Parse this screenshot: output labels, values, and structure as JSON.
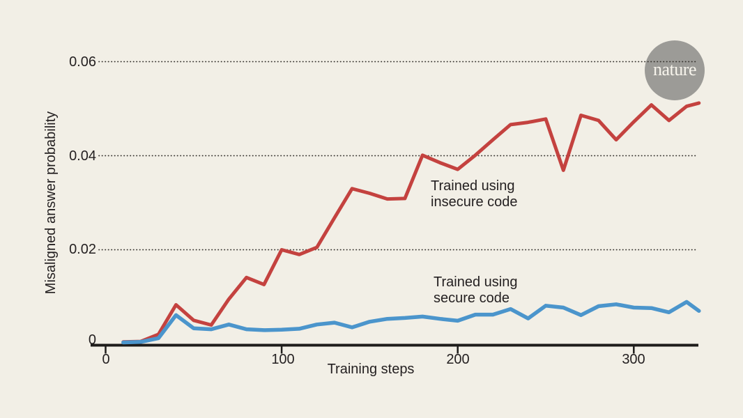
{
  "page": {
    "background_color": "#f2efe6",
    "text_color": "#231f20"
  },
  "logo": {
    "label": "nature",
    "circle_color": "#9c9b97",
    "text_color": "#f7f4ec"
  },
  "chart_data": {
    "type": "line",
    "title": "",
    "xlabel": "Training steps",
    "ylabel": "Misaligned answer probability",
    "xlim": [
      0,
      340
    ],
    "ylim": [
      0,
      0.065
    ],
    "grid": "horizontal dotted at 0.02, 0.04, 0.06",
    "legend_position": "inline annotations next to lines",
    "x_tick_values": [
      0,
      100,
      200,
      300
    ],
    "x_tick_labels": [
      "0",
      "100",
      "200",
      "300"
    ],
    "y_tick_values": [
      0,
      0.02,
      0.04,
      0.06
    ],
    "y_tick_labels": [
      "0",
      "0.02",
      "0.04",
      "0.06"
    ],
    "x": [
      10,
      20,
      30,
      40,
      50,
      60,
      70,
      80,
      90,
      100,
      110,
      120,
      130,
      140,
      150,
      160,
      170,
      180,
      190,
      200,
      210,
      220,
      230,
      240,
      250,
      260,
      270,
      280,
      290,
      300,
      310,
      320,
      330,
      337
    ],
    "series": [
      {
        "name": "Trained using insecure code",
        "color": "#c4423f",
        "stroke_width": 5,
        "values": [
          0.0004,
          0.0005,
          0.002,
          0.0083,
          0.005,
          0.004,
          0.0095,
          0.0141,
          0.0126,
          0.02,
          0.019,
          0.0205,
          0.0268,
          0.033,
          0.032,
          0.0308,
          0.0309,
          0.0401,
          0.0385,
          0.0371,
          0.0401,
          0.0434,
          0.0466,
          0.0471,
          0.0478,
          0.0369,
          0.0486,
          0.0475,
          0.0434,
          0.0472,
          0.0508,
          0.0475,
          0.0505,
          0.0512
        ]
      },
      {
        "name": "Trained using secure code",
        "color": "#4b95cc",
        "stroke_width": 5.5,
        "values": [
          0.0003,
          0.0004,
          0.0012,
          0.0061,
          0.0033,
          0.0031,
          0.0041,
          0.0031,
          0.0029,
          0.003,
          0.0032,
          0.0041,
          0.0045,
          0.0035,
          0.0047,
          0.0053,
          0.0055,
          0.0058,
          0.0053,
          0.0049,
          0.0062,
          0.0062,
          0.0074,
          0.0054,
          0.0081,
          0.0077,
          0.0061,
          0.008,
          0.0084,
          0.0077,
          0.0076,
          0.0067,
          0.0089,
          0.007
        ]
      }
    ],
    "annotations": [
      {
        "line1": "Trained using",
        "line2": "insecure code"
      },
      {
        "line1": "Trained using",
        "line2": "secure code"
      }
    ],
    "axis_color": "#1e1c1a",
    "gridline_color": "#35322d"
  }
}
